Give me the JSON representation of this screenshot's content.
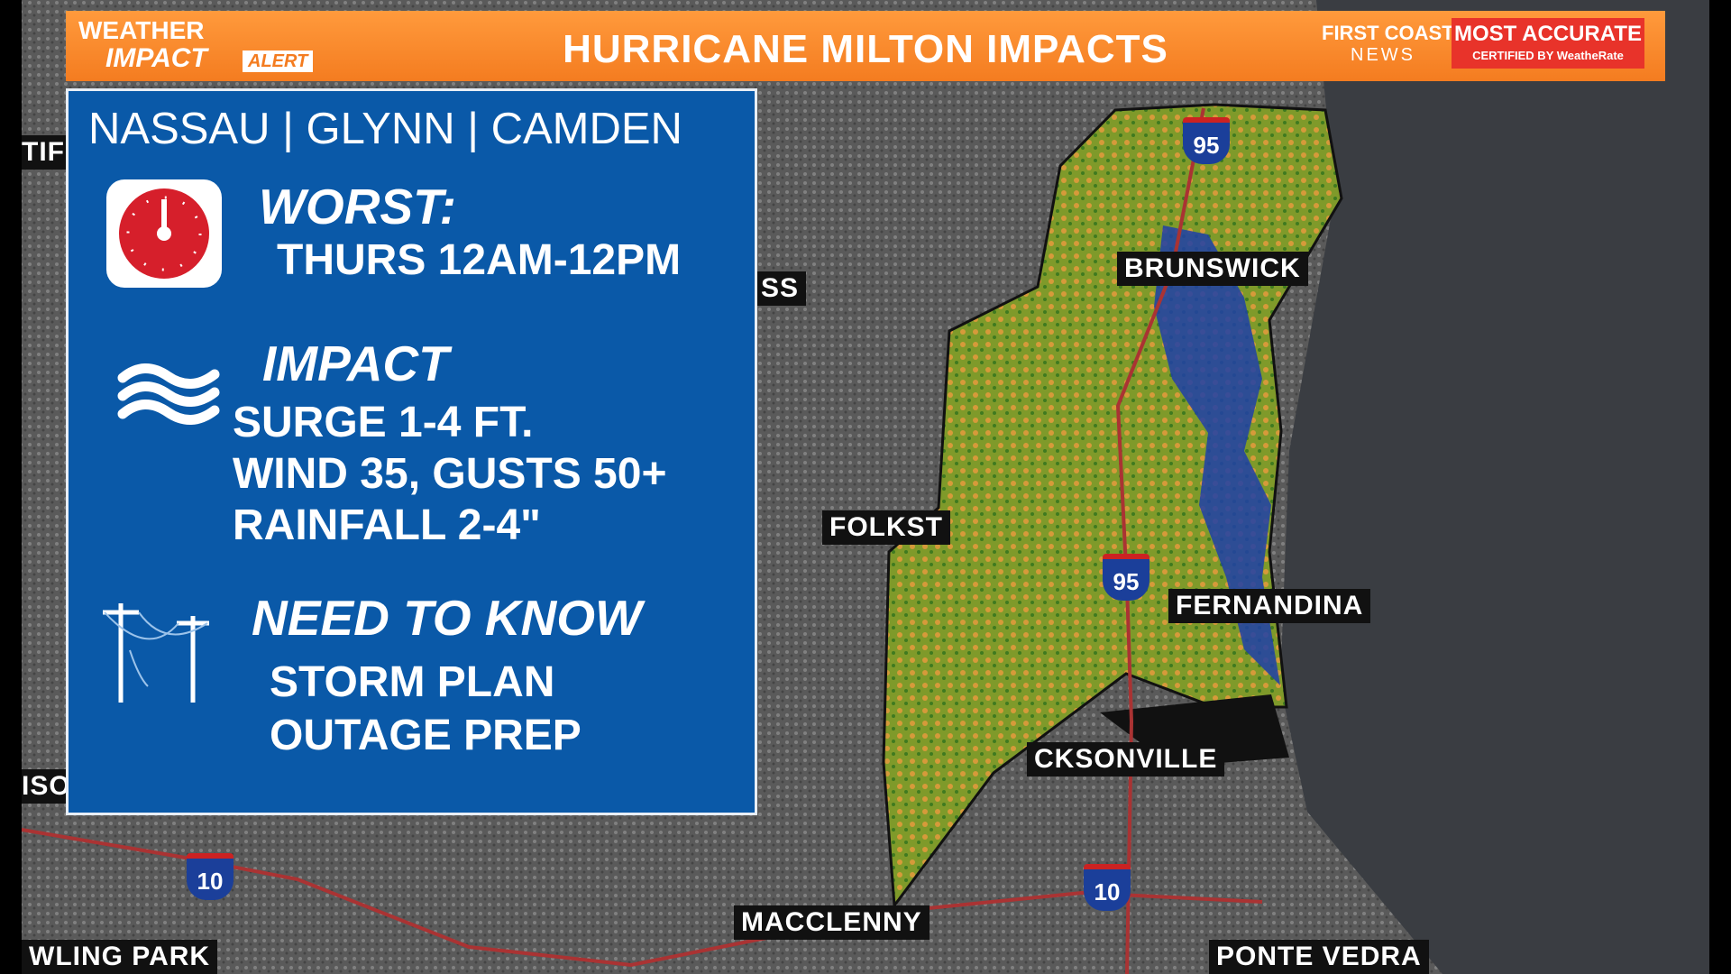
{
  "header": {
    "logo": {
      "line1": "WEATHER",
      "line2": "IMPACT",
      "badge": "ALERT"
    },
    "title": "HURRICANE MILTON IMPACTS",
    "station": {
      "name": "FIRST COAST",
      "sub": "NEWS"
    },
    "accuracy": {
      "title": "MOST ACCURATE",
      "sub": "CERTIFIED BY WeatheRate"
    }
  },
  "panel": {
    "title": "NASSAU | GLYNN | CAMDEN",
    "sections": [
      {
        "heading": "WORST:",
        "lines": [
          "THURS 12AM-12PM"
        ]
      },
      {
        "heading": "IMPACT",
        "lines": [
          "SURGE 1-4 FT.",
          "WIND 35, GUSTS 50+",
          "RAINFALL 2-4\""
        ]
      },
      {
        "heading": "NEED TO KNOW",
        "lines": [
          "STORM PLAN",
          "OUTAGE PREP"
        ]
      }
    ]
  },
  "map": {
    "labels": [
      "BRUNSWICK",
      "FOLKST",
      "FERNANDINA",
      "CKSONVILLE",
      "MACCLENNY",
      "PONTE VEDRA",
      "WLING PARK",
      "SS",
      "TIF",
      "ISO"
    ],
    "shields": [
      "95",
      "95",
      "10",
      "10"
    ]
  }
}
